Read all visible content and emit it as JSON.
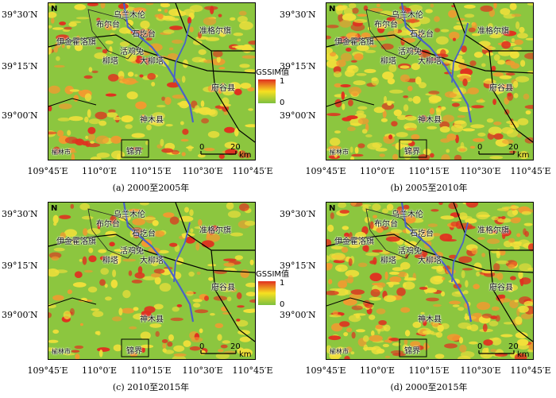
{
  "lat_labels": [
    "39°30′N",
    "39°15′N",
    "39°00′N"
  ],
  "lon_labels": [
    "109°45′E",
    "110°0′E",
    "110°15′E",
    "110°30′E",
    "110°45′E"
  ],
  "places": {
    "shenmu_county": "神木县",
    "zhungeer": "准格尔旗",
    "fugu": "府谷县",
    "yijinhuoluo": "伊金霍洛旗",
    "buertai": "布尔台",
    "kundulun": "柳塔",
    "daliuta": "大柳塔",
    "wuliu": "乌兰木伦",
    "shitai": "石圪台",
    "hualiang": "活鸡兔",
    "jinjie": "锦界",
    "yulin": "榆林市"
  },
  "north_label": "N",
  "scale": {
    "zero": "0",
    "twenty": "20",
    "unit": "km"
  },
  "legend": {
    "title": "GSSIM值",
    "high": "1",
    "low": "0"
  },
  "panels": [
    {
      "caption": "(a) 2000至2005年"
    },
    {
      "caption": "(b) 2005至2010年"
    },
    {
      "caption": "(c) 2010至2015年"
    },
    {
      "caption": "(d) 2000至2015年"
    }
  ],
  "colors": {
    "green": "#8cc63f",
    "yellow": "#f2e03a",
    "orange": "#f29a30",
    "red": "#e03020",
    "river": "#4a62c8"
  }
}
